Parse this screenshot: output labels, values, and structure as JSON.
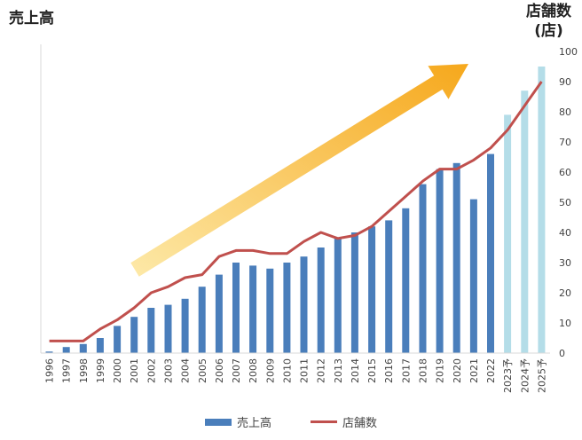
{
  "titles": {
    "left_axis_title": "売上高",
    "right_axis_title_line1": "店舗数",
    "right_axis_title_line2": "(店)"
  },
  "legend": {
    "bar_label": "売上高",
    "line_label": "店舗数"
  },
  "colors": {
    "bar_actual": "#4a7ebb",
    "bar_forecast": "#b4dde8",
    "line": "#c0504d",
    "arrow_start": "#fde9a8",
    "arrow_end": "#f6a81c",
    "grid": "#d9d9d9"
  },
  "chart_data": {
    "type": "bar",
    "title": "",
    "xlabel": "",
    "ylabel": "売上高",
    "y2label": "店舗数(店)",
    "categories": [
      "1996",
      "1997",
      "1998",
      "1999",
      "2000",
      "2001",
      "2002",
      "2003",
      "2004",
      "2005",
      "2006",
      "2007",
      "2008",
      "2009",
      "2010",
      "2011",
      "2012",
      "2013",
      "2014",
      "2015",
      "2016",
      "2017",
      "2018",
      "2019",
      "2020",
      "2021",
      "2022",
      "2023予",
      "2024予",
      "2025予"
    ],
    "y2lim": [
      0,
      100
    ],
    "y2ticks": [
      0,
      10,
      20,
      30,
      40,
      50,
      60,
      70,
      80,
      90,
      100
    ],
    "grid": false,
    "legend_position": "bottom-center",
    "series": [
      {
        "name": "売上高",
        "type": "bar",
        "axis": "left (unlabeled, shown on 店舗数 scale)",
        "values": [
          0.5,
          2,
          3,
          5,
          9,
          12,
          15,
          16,
          18,
          22,
          26,
          30,
          29,
          28,
          30,
          32,
          35,
          38,
          40,
          42,
          44,
          48,
          56,
          61,
          63,
          51,
          66,
          79,
          87,
          95
        ],
        "forecast_from_index": 27
      },
      {
        "name": "店舗数",
        "type": "line",
        "axis": "right",
        "values": [
          4,
          4,
          4,
          8,
          11,
          15,
          20,
          22,
          25,
          26,
          32,
          34,
          34,
          33,
          33,
          37,
          40,
          38,
          39,
          42,
          47,
          52,
          57,
          61,
          61,
          64,
          68,
          74,
          82,
          90
        ]
      }
    ]
  }
}
